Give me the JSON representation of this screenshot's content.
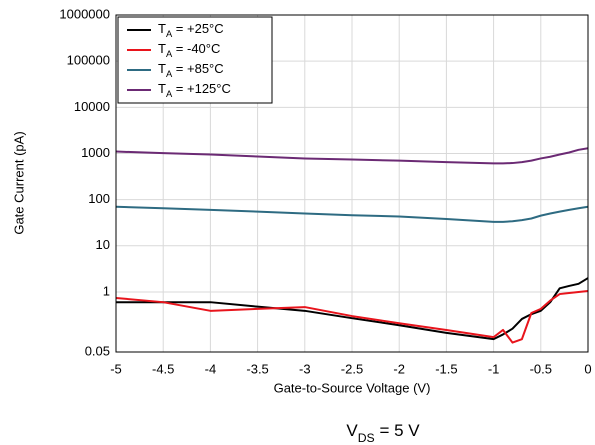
{
  "chart_data": {
    "type": "line",
    "xlabel": "Gate-to-Source Voltage (V)",
    "ylabel": "Gate Current (pA)",
    "annotation": "VDS = 5 V",
    "x": [
      -5,
      -4.5,
      -4,
      -3.5,
      -3,
      -2.5,
      -2,
      -1.5,
      -1,
      -0.9,
      -0.8,
      -0.7,
      -0.6,
      -0.5,
      -0.4,
      -0.3,
      -0.2,
      -0.1,
      0
    ],
    "series": [
      {
        "name": "TA = +25°C",
        "color": "#000000",
        "values": [
          0.6,
          0.6,
          0.6,
          0.48,
          0.39,
          0.27,
          0.19,
          0.13,
          0.095,
          0.12,
          0.16,
          0.26,
          0.33,
          0.39,
          0.6,
          1.2,
          1.35,
          1.5,
          2
        ]
      },
      {
        "name": "TA = -40°C",
        "color": "#e8141c",
        "values": [
          0.74,
          0.6,
          0.39,
          0.43,
          0.47,
          0.3,
          0.21,
          0.15,
          0.105,
          0.15,
          0.08,
          0.095,
          0.35,
          0.43,
          0.65,
          0.9,
          0.95,
          1.0,
          1.05
        ]
      },
      {
        "name": "TA = +85°C",
        "color": "#2e6b82",
        "values": [
          70,
          65,
          60,
          55,
          50,
          46,
          43,
          38,
          33,
          33,
          34,
          36,
          39,
          45,
          50,
          55,
          60,
          65,
          70
        ]
      },
      {
        "name": "TA = +125°C",
        "color": "#6b2a74",
        "values": [
          1100,
          1020,
          950,
          860,
          780,
          740,
          700,
          650,
          610,
          610,
          620,
          650,
          700,
          780,
          850,
          950,
          1050,
          1200,
          1300
        ]
      }
    ],
    "xlim": [
      -5,
      0
    ],
    "xticks": [
      -5,
      -4.5,
      -4,
      -3.5,
      -3,
      -2.5,
      -2,
      -1.5,
      -1,
      -0.5,
      0
    ],
    "ylim": [
      0.05,
      1000000
    ],
    "yticks": [
      0.05,
      1,
      10,
      100,
      1000,
      10000,
      100000,
      1000000
    ],
    "log_y": true,
    "grid": true,
    "legend": "upper left"
  }
}
